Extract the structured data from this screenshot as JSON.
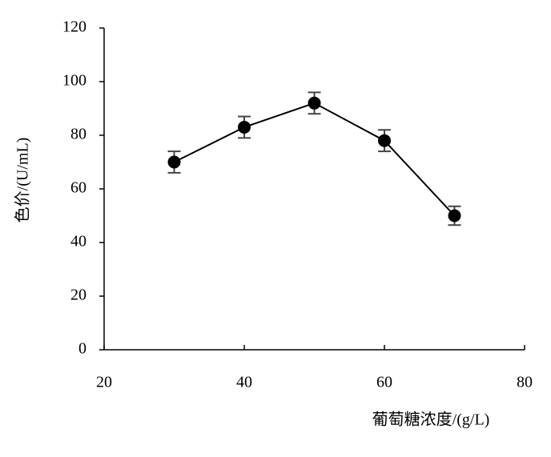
{
  "chart_data": {
    "type": "line",
    "x_label": "葡萄糖浓度/(g/L)",
    "y_label": "色价/(U/mL)",
    "x": [
      30,
      40,
      50,
      60,
      70
    ],
    "values": [
      70,
      83,
      92,
      78,
      50
    ],
    "errors": [
      4,
      4,
      4,
      4,
      3.5
    ],
    "color": "#000000",
    "xlim": [
      20,
      80
    ],
    "xticks": [
      20,
      40,
      60,
      80
    ],
    "ylim": [
      0,
      120
    ],
    "yticks": [
      0,
      20,
      40,
      60,
      80,
      100,
      120
    ]
  }
}
